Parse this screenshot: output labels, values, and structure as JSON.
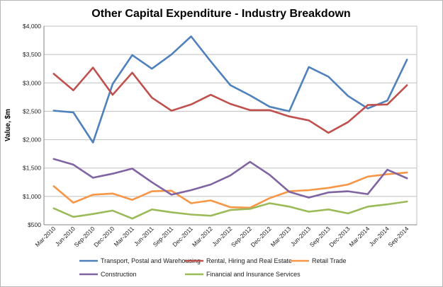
{
  "chart_data": {
    "type": "line",
    "title": "Other Capital Expenditure - Industry Breakdown",
    "xlabel": "",
    "ylabel": "Value, $m",
    "ylim": [
      500,
      4000
    ],
    "y_ticks": [
      "$500",
      "$1,000",
      "$1,500",
      "$2,000",
      "$2,500",
      "$3,000",
      "$3,500",
      "$4,000"
    ],
    "grid": true,
    "legend_position": "bottom",
    "categories": [
      "Mar-2010",
      "Jun-2010",
      "Sep-2010",
      "Dec-2010",
      "Mar-2011",
      "Jun-2011",
      "Sep-2011",
      "Dec-2011",
      "Mar-2012",
      "Jun-2012",
      "Sep-2012",
      "Dec-2012",
      "Mar-2013",
      "Jun-2013",
      "Sep-2013",
      "Dec-2013",
      "Mar-2014",
      "Jun-2014",
      "Sep-2014"
    ],
    "series": [
      {
        "name": "Transport, Postal and Warehousing",
        "color": "#4f81bd",
        "values": [
          2510,
          2480,
          1950,
          2980,
          3490,
          3250,
          3500,
          3820,
          3380,
          2960,
          2780,
          2580,
          2500,
          3280,
          3110,
          2770,
          2550,
          2690,
          3410
        ]
      },
      {
        "name": "Rental, Hiring and Real Estate",
        "color": "#c0504d",
        "values": [
          3160,
          2870,
          3270,
          2790,
          3180,
          2740,
          2510,
          2620,
          2790,
          2630,
          2520,
          2520,
          2410,
          2340,
          2120,
          2310,
          2610,
          2620,
          2960
        ]
      },
      {
        "name": "Retail Trade",
        "color": "#f79646",
        "values": [
          1180,
          890,
          1030,
          1050,
          940,
          1090,
          1100,
          880,
          930,
          810,
          800,
          970,
          1090,
          1110,
          1150,
          1210,
          1350,
          1390,
          1420
        ]
      },
      {
        "name": "Construction",
        "color": "#8064a2",
        "values": [
          1660,
          1560,
          1330,
          1400,
          1490,
          1250,
          1030,
          1110,
          1210,
          1370,
          1610,
          1380,
          1080,
          980,
          1070,
          1090,
          1040,
          1470,
          1320
        ]
      },
      {
        "name": "Financial and Insurance Services",
        "color": "#9bbb59",
        "values": [
          790,
          640,
          690,
          750,
          610,
          770,
          720,
          680,
          660,
          760,
          780,
          880,
          820,
          730,
          770,
          700,
          820,
          860,
          910
        ]
      }
    ]
  }
}
